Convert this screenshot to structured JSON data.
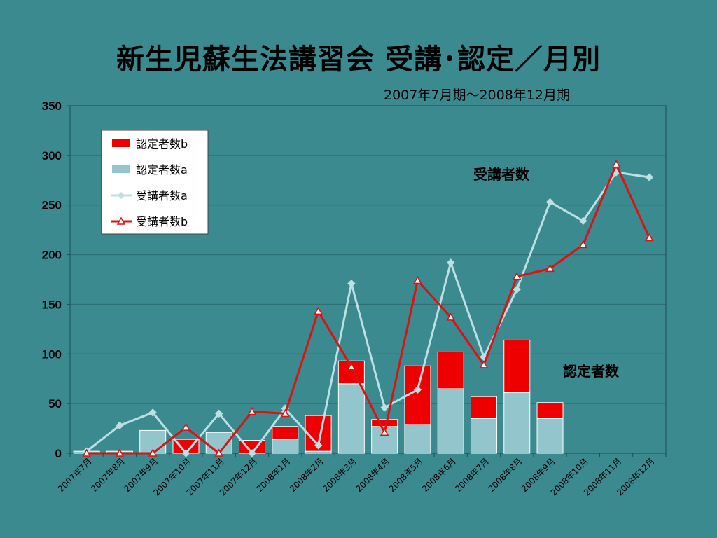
{
  "chart_data": {
    "type": "bar",
    "title": "新生児蘇生法講習会 受講･認定／月別",
    "subtitle": "2007年7月期～2008年12月期",
    "categories": [
      "2007年7月",
      "2007年8月",
      "2007年9月",
      "2007年10月",
      "2007年11月",
      "2007年12月",
      "2008年1月",
      "2008年2月",
      "2008年3月",
      "2008年4月",
      "2008年5月",
      "2008年6月",
      "2008年7月",
      "2008年8月",
      "2008年9月",
      "2008年10月",
      "2008年11月",
      "2008年12月"
    ],
    "ylim": [
      0,
      350
    ],
    "yticks": [
      0,
      50,
      100,
      150,
      200,
      250,
      300,
      350
    ],
    "series": [
      {
        "name": "認定者数b",
        "kind": "bar-stacked",
        "color": "#ee0000",
        "values": [
          0,
          0,
          0,
          14,
          0,
          13,
          13,
          36,
          23,
          7,
          59,
          37,
          22,
          53,
          16,
          0,
          0,
          0
        ]
      },
      {
        "name": "認定者数a",
        "kind": "bar-stacked",
        "color": "#92c5cc",
        "values": [
          2,
          2,
          23,
          0,
          21,
          0,
          14,
          2,
          70,
          27,
          29,
          65,
          35,
          61,
          35,
          0,
          0,
          0
        ]
      },
      {
        "name": "受講者数a",
        "kind": "line",
        "color": "#bde0e4",
        "marker": "diamond",
        "values": [
          2,
          28,
          41,
          0,
          40,
          0,
          45,
          8,
          171,
          46,
          64,
          192,
          97,
          165,
          253,
          234,
          283,
          278
        ]
      },
      {
        "name": "受講者数b",
        "kind": "line",
        "color": "#dd1111",
        "marker": "triangle",
        "values": [
          0,
          0,
          0,
          26,
          0,
          42,
          40,
          143,
          87,
          21,
          174,
          137,
          89,
          178,
          186,
          210,
          291,
          217
        ]
      }
    ],
    "annotations": [
      "受講者数",
      "認定者数"
    ],
    "legend": "top-left",
    "grid": true
  }
}
